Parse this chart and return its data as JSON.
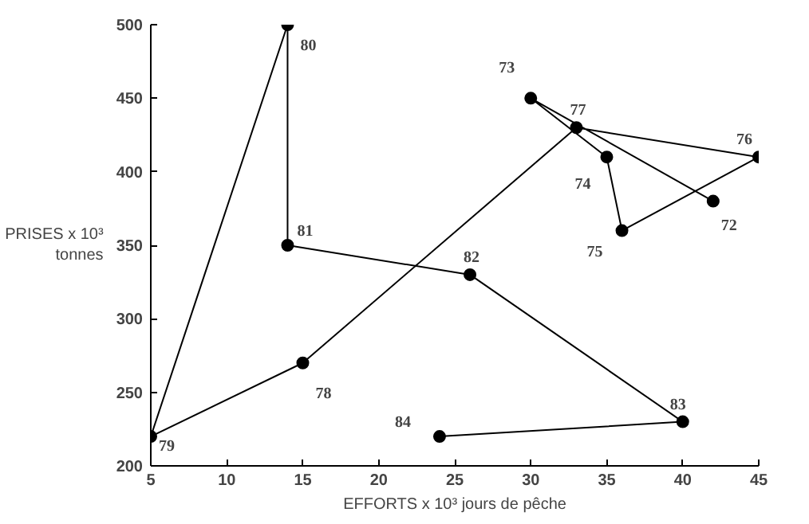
{
  "chart_data": {
    "type": "line",
    "xlabel": "EFFORTS x 10³ jours de pêche",
    "ylabel": "PRISES x 10³\ntonnes",
    "x": [
      42,
      30,
      35,
      36,
      45,
      33,
      15,
      5,
      14,
      14,
      26,
      40,
      24
    ],
    "series": [
      {
        "color": "#000000",
        "values": [
          380,
          450,
          410,
          360,
          410,
          430,
          270,
          220,
          500,
          350,
          330,
          230,
          220
        ]
      }
    ],
    "marker": "circle",
    "grid": false,
    "xlim": [
      5,
      45
    ],
    "xticks": [
      5,
      10,
      15,
      20,
      25,
      30,
      35,
      40,
      45
    ],
    "ylim": [
      200,
      500
    ],
    "yticks": [
      200,
      250,
      300,
      350,
      400,
      450,
      500
    ],
    "annotations": [
      {
        "text": "72",
        "x": 42,
        "y": 380
      },
      {
        "text": "73",
        "x": 30,
        "y": 450
      },
      {
        "text": "74",
        "x": 35,
        "y": 410
      },
      {
        "text": "75",
        "x": 36,
        "y": 360
      },
      {
        "text": "76",
        "x": 45,
        "y": 410
      },
      {
        "text": "77",
        "x": 33,
        "y": 430
      },
      {
        "text": "78",
        "x": 15,
        "y": 270
      },
      {
        "text": "79",
        "x": 5,
        "y": 220
      },
      {
        "text": "80",
        "x": 14,
        "y": 500
      },
      {
        "text": "81",
        "x": 14,
        "y": 350
      },
      {
        "text": "82",
        "x": 26,
        "y": 330
      },
      {
        "text": "83",
        "x": 40,
        "y": 230
      },
      {
        "text": "84",
        "x": 24,
        "y": 220
      }
    ]
  }
}
